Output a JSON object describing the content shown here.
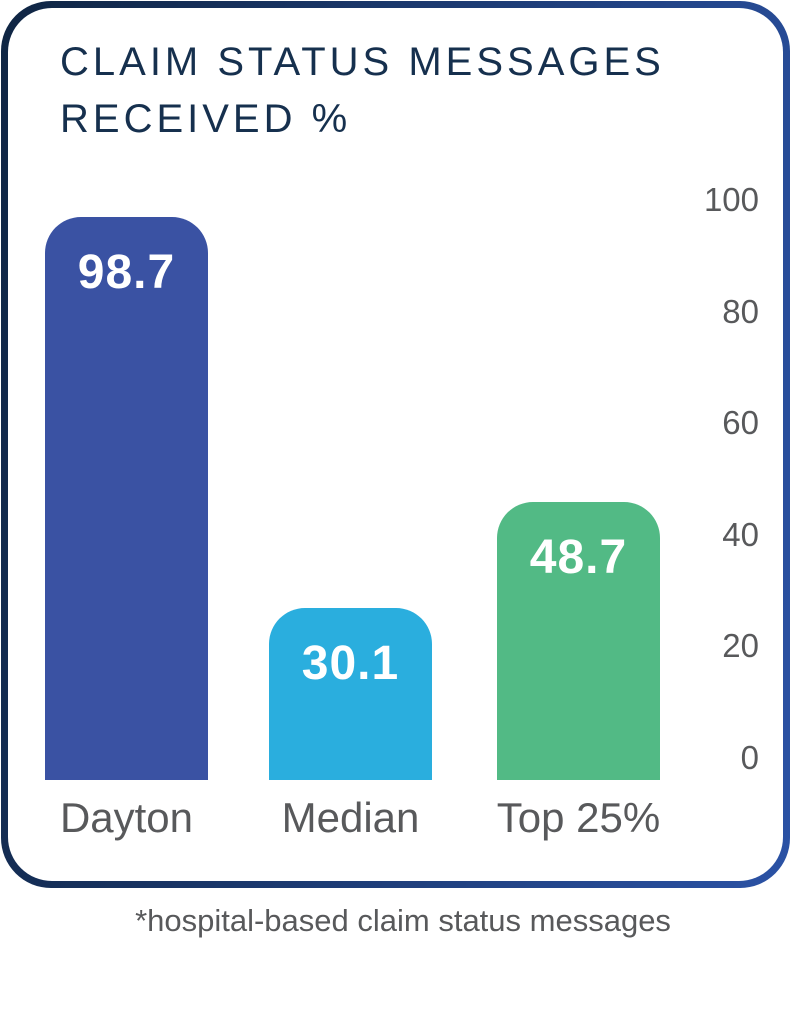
{
  "title": {
    "line1": "CLAIM STATUS MESSAGES",
    "line2": "RECEIVED %"
  },
  "footnote": "*hospital-based claim status messages",
  "colors": {
    "title_navy": "#16304e",
    "border_gradient_start": "#0f2543",
    "border_gradient_end": "#2b52a5",
    "label_gray": "#58595b",
    "bar_dayton": "#3a52a3",
    "bar_median": "#2aaede",
    "bar_top25": "#52ba85"
  },
  "chart_data": {
    "type": "bar",
    "title": "CLAIM STATUS MESSAGES RECEIVED %",
    "categories": [
      "Dayton",
      "Median",
      "Top 25%"
    ],
    "values": [
      98.7,
      30.1,
      48.7
    ],
    "value_labels": [
      "98.7",
      "30.1",
      "48.7"
    ],
    "bar_colors": [
      "#3a52a3",
      "#2aaede",
      "#52ba85"
    ],
    "yticks": [
      100,
      80,
      60,
      40,
      20,
      0
    ],
    "ylim": [
      0,
      100
    ],
    "yaxis_side": "right",
    "grid": false,
    "legend": false,
    "value_labels_position": "inside-top",
    "footnote": "*hospital-based claim status messages"
  }
}
